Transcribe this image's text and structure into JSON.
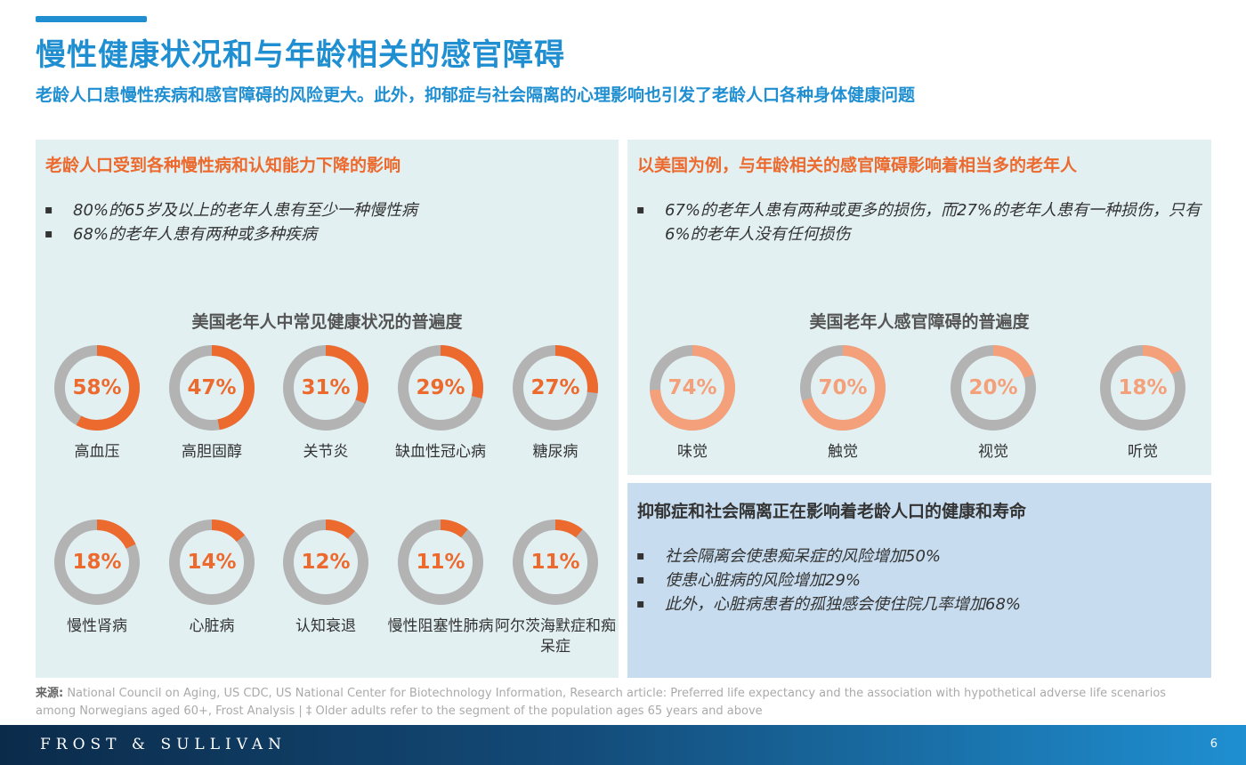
{
  "header": {
    "title": "慢性健康状况和与年龄相关的感官障碍",
    "subtitle": "老龄人口患慢性疾病和感官障碍的风险更大。此外，抑郁症与社会隔离的心理影响也引发了老龄人口各种身体健康问题"
  },
  "left_panel": {
    "heading": "老龄人口受到各种慢性病和认知能力下降的影响",
    "bullets": [
      "80%的65岁及以上的老年人患有至少一种慢性病",
      "68%的老年人患有两种或多种疾病"
    ],
    "chart_title": "美国老年人中常见健康状况的普遍度"
  },
  "right_top_panel": {
    "heading": "以美国为例，与年龄相关的感官障碍影响着相当多的老年人",
    "bullets": [
      "67%的老年人患有两种或更多的损伤，而27%的老年人患有一种损伤，只有6%的老年人没有任何损伤"
    ],
    "chart_title": "美国老年人感官障碍的普遍度"
  },
  "right_bottom_panel": {
    "heading": "抑郁症和社会隔离正在影响着老龄人口的健康和寿命",
    "bullets": [
      "社会隔离会使患痴呆症的风险增加50%",
      "使患心脏病的风险增加29%",
      "此外，心脏病患者的孤独感会使住院几率增加68%"
    ]
  },
  "chart_data": [
    {
      "type": "pie",
      "title": "美国老年人中常见健康状况的普遍度",
      "categories": [
        "高血压",
        "高胆固醇",
        "关节炎",
        "缺血性冠心病",
        "糖尿病",
        "慢性肾病",
        "心脏病",
        "认知衰退",
        "慢性阻塞性肺病",
        "阿尔茨海默症和痴呆症"
      ],
      "values": [
        58,
        47,
        31,
        29,
        27,
        18,
        14,
        12,
        11,
        11
      ],
      "display": [
        "58%",
        "47%",
        "31%",
        "29%",
        "27%",
        "18%",
        "14%",
        "12%",
        "11%",
        "11%"
      ],
      "unit": "%",
      "accent_color": "#ec6a2e",
      "track_color": "#b3b3b3"
    },
    {
      "type": "pie",
      "title": "美国老年人感官障碍的普遍度",
      "categories": [
        "味觉",
        "触觉",
        "视觉",
        "听觉"
      ],
      "values": [
        74,
        70,
        20,
        18
      ],
      "display": [
        "74%",
        "70%",
        "20%",
        "18%"
      ],
      "unit": "%",
      "accent_color": "#f4a07a",
      "track_color": "#b3b3b3"
    }
  ],
  "source": {
    "label": "来源:",
    "text": " National Council on Aging, US CDC, US National Center for Biotechnology Information, Research article: Preferred life expectancy and the association with hypothetical adverse life scenarios among Norwegians aged 60+, Frost Analysis | ‡ Older adults refer to the segment of the population ages 65 years and above"
  },
  "footer": {
    "brand": "FROST & SULLIVAN",
    "page_number": "6"
  }
}
